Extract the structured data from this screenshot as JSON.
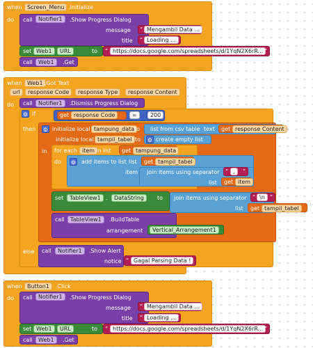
{
  "kw": {
    "when": "when",
    "do": "do",
    "call": "call",
    "set": "set",
    "to": "to",
    "if": "if",
    "then": "then",
    "else": "else",
    "in": "in",
    "get": "get",
    "eq": "=",
    "url": "url",
    "item": "item",
    "list": "list",
    "message": "message",
    "title": "title",
    "notice": "notice",
    "arrangement": "arrangement"
  },
  "block1": {
    "component": "Screen_Menu",
    "event": ".Initialize",
    "notifier": "Notifier1",
    "method": ".Show Progress Dialog",
    "message": "Mengambil Data ...",
    "title": "Loading ...",
    "web": "Web1",
    "url_prop": "URL",
    "url": "https://docs.google.com/spreadsheets/d/1YqN2X6rR...",
    "get_method": ".Get"
  },
  "block2": {
    "component": "Web1",
    "event": ".Got Text",
    "params": [
      "url",
      "response Code",
      "response Type",
      "response Content"
    ],
    "dismiss": ".Dismiss Progress Dialog",
    "notifier": "Notifier1",
    "response_code": "response Code",
    "code_value": "200",
    "init_local": "initialize local",
    "var_tampung": "tampung_data",
    "list_from_csv": "list from csv table",
    "text": "text",
    "response_content": "response Content",
    "var_tampil": "tampil_tabel",
    "empty_list": "create empty list",
    "for_each": "for each",
    "in_list": "in list",
    "add_items": "add items to list",
    "join_sep": "join items using separator",
    "sep_comma": ",",
    "sep_newline": "\\n",
    "table": "TableView1",
    "prop_datastring": "DataString",
    "build_table": ".BuildTable",
    "arrangement_value": "Vertical_Arrangement1",
    "show_alert": ".Show Alert",
    "alert_text": "Gagal Parsing Data !"
  },
  "block3": {
    "component": "Button1",
    "event": ".Click",
    "notifier": "Notifier1",
    "method": ".Show Progress Dialog",
    "message": "Mengambil Data ...",
    "title": "Loading ...",
    "web": "Web1",
    "url_prop": "URL",
    "url": "https://docs.google.com/spreadsheets/d/1YqN2X6rR...",
    "get_method": ".Get"
  }
}
